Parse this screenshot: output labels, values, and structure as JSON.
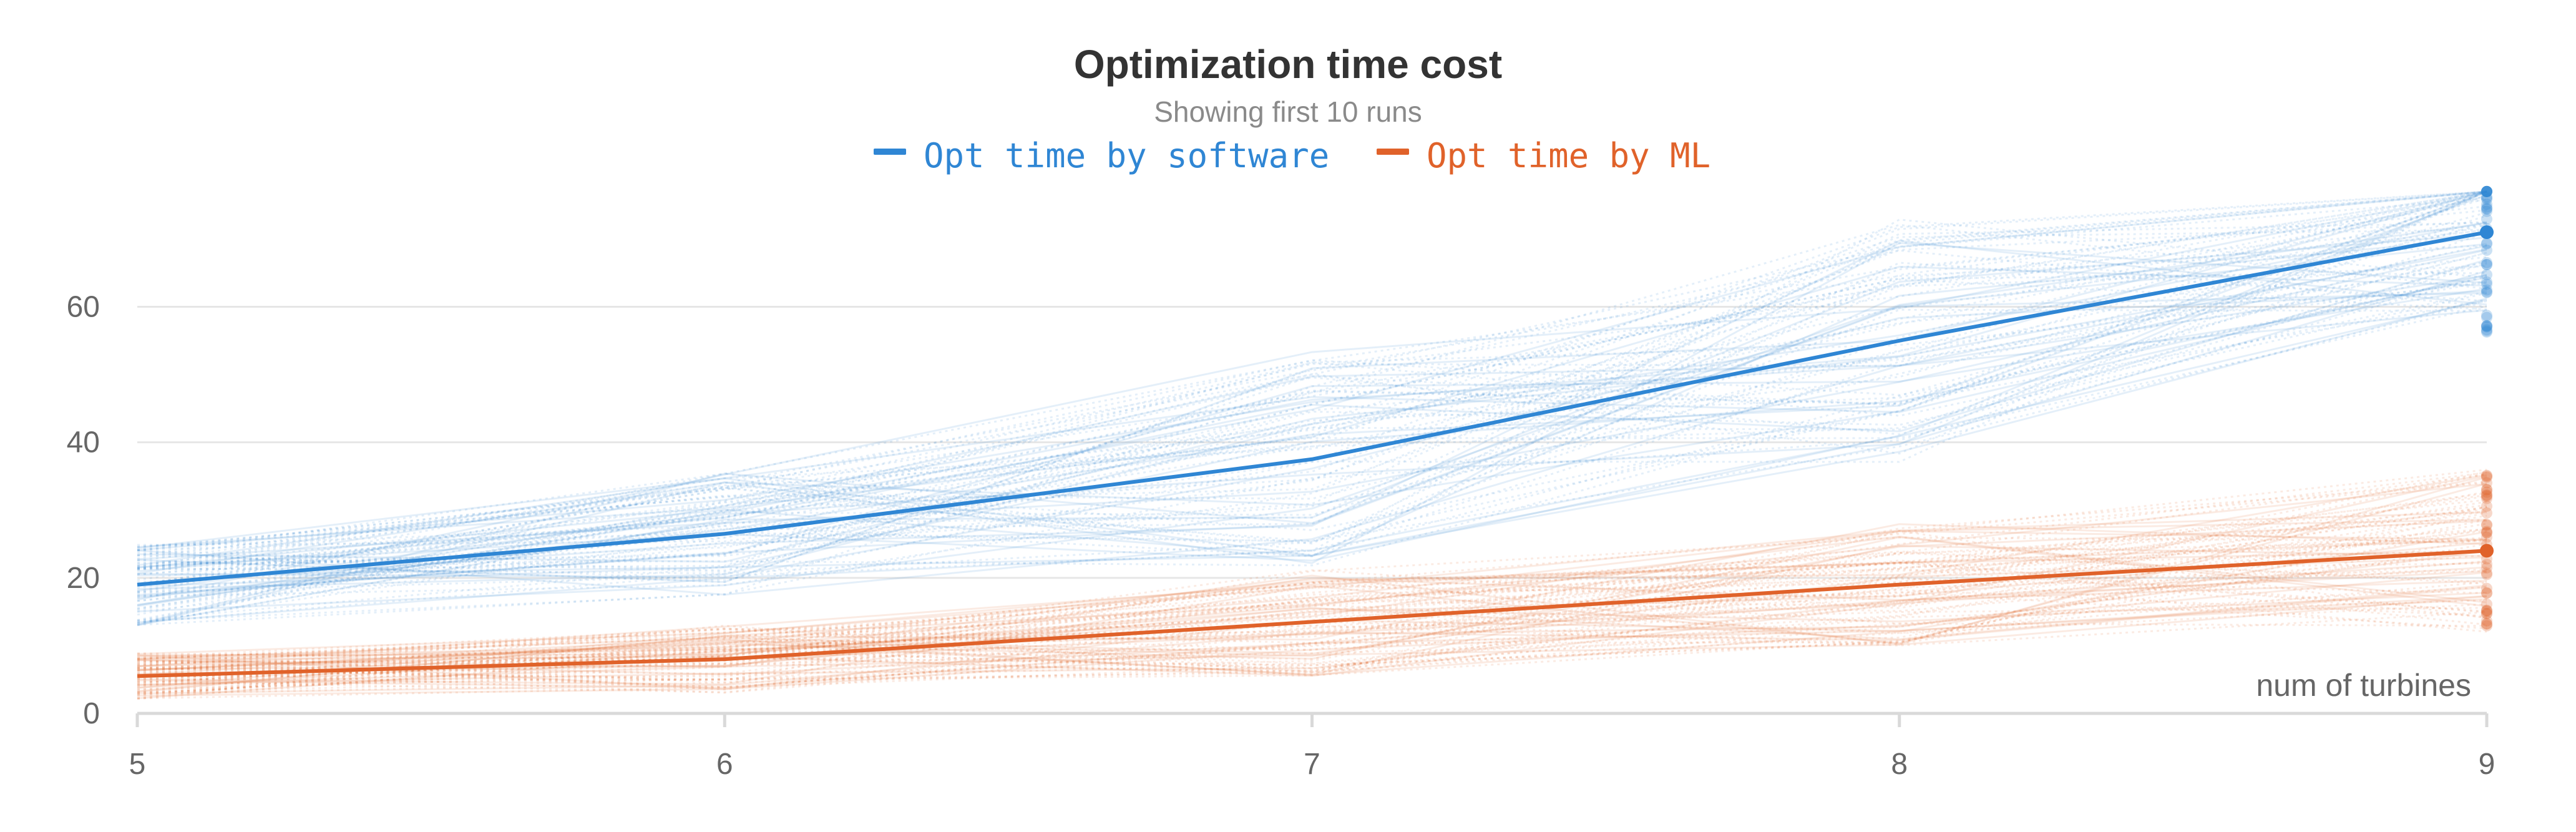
{
  "header": {
    "title": "Optimization time cost",
    "subtitle": "Showing first 10 runs"
  },
  "legend": [
    {
      "name": "Opt time by software",
      "color": "#2f86d4"
    },
    {
      "name": "Opt time by ML",
      "color": "#e0622a"
    }
  ],
  "chart_data": {
    "type": "line",
    "title": "Optimization time cost",
    "subtitle": "Showing first 10 runs",
    "xlabel": "num of turbines",
    "ylabel": "",
    "x": [
      5,
      6,
      7,
      8,
      9
    ],
    "x_ticks": [
      "5",
      "6",
      "7",
      "8",
      "9"
    ],
    "y_ticks": [
      "0",
      "20",
      "40",
      "60"
    ],
    "xlim": [
      5,
      9
    ],
    "ylim": [
      0,
      78
    ],
    "grid": true,
    "legend_position": "top-center",
    "series": [
      {
        "name": "Opt time by software",
        "color": "#2f86d4",
        "values": [
          19,
          26.5,
          37.5,
          55,
          71
        ]
      },
      {
        "name": "Opt time by ML",
        "color": "#e0622a",
        "values": [
          5.5,
          8,
          13.5,
          19,
          24
        ]
      }
    ]
  }
}
